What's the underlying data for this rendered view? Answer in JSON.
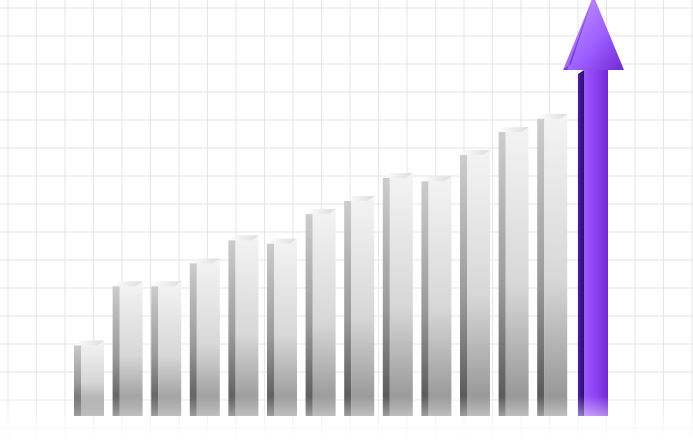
{
  "chart_data": {
    "type": "bar",
    "title": "",
    "xlabel": "",
    "ylabel": "",
    "values": [
      23,
      41,
      41,
      48,
      55,
      54,
      63,
      67,
      74,
      73,
      81,
      88,
      92
    ],
    "ylim": [
      0,
      120
    ],
    "grid": true,
    "legend": "none",
    "arrow": {
      "direction": "up",
      "color": "#8a3ff0",
      "value": 128
    }
  },
  "colors": {
    "background": "#ffffff",
    "grid": "#e6e6e6",
    "bar_light": "#f7f7f7",
    "bar_mid": "#d4d4d4",
    "bar_dark": "#6e6e6e",
    "arrow_light": "#b58cff",
    "arrow_mid": "#8a3ff0",
    "arrow_dark": "#4a1ba3"
  }
}
